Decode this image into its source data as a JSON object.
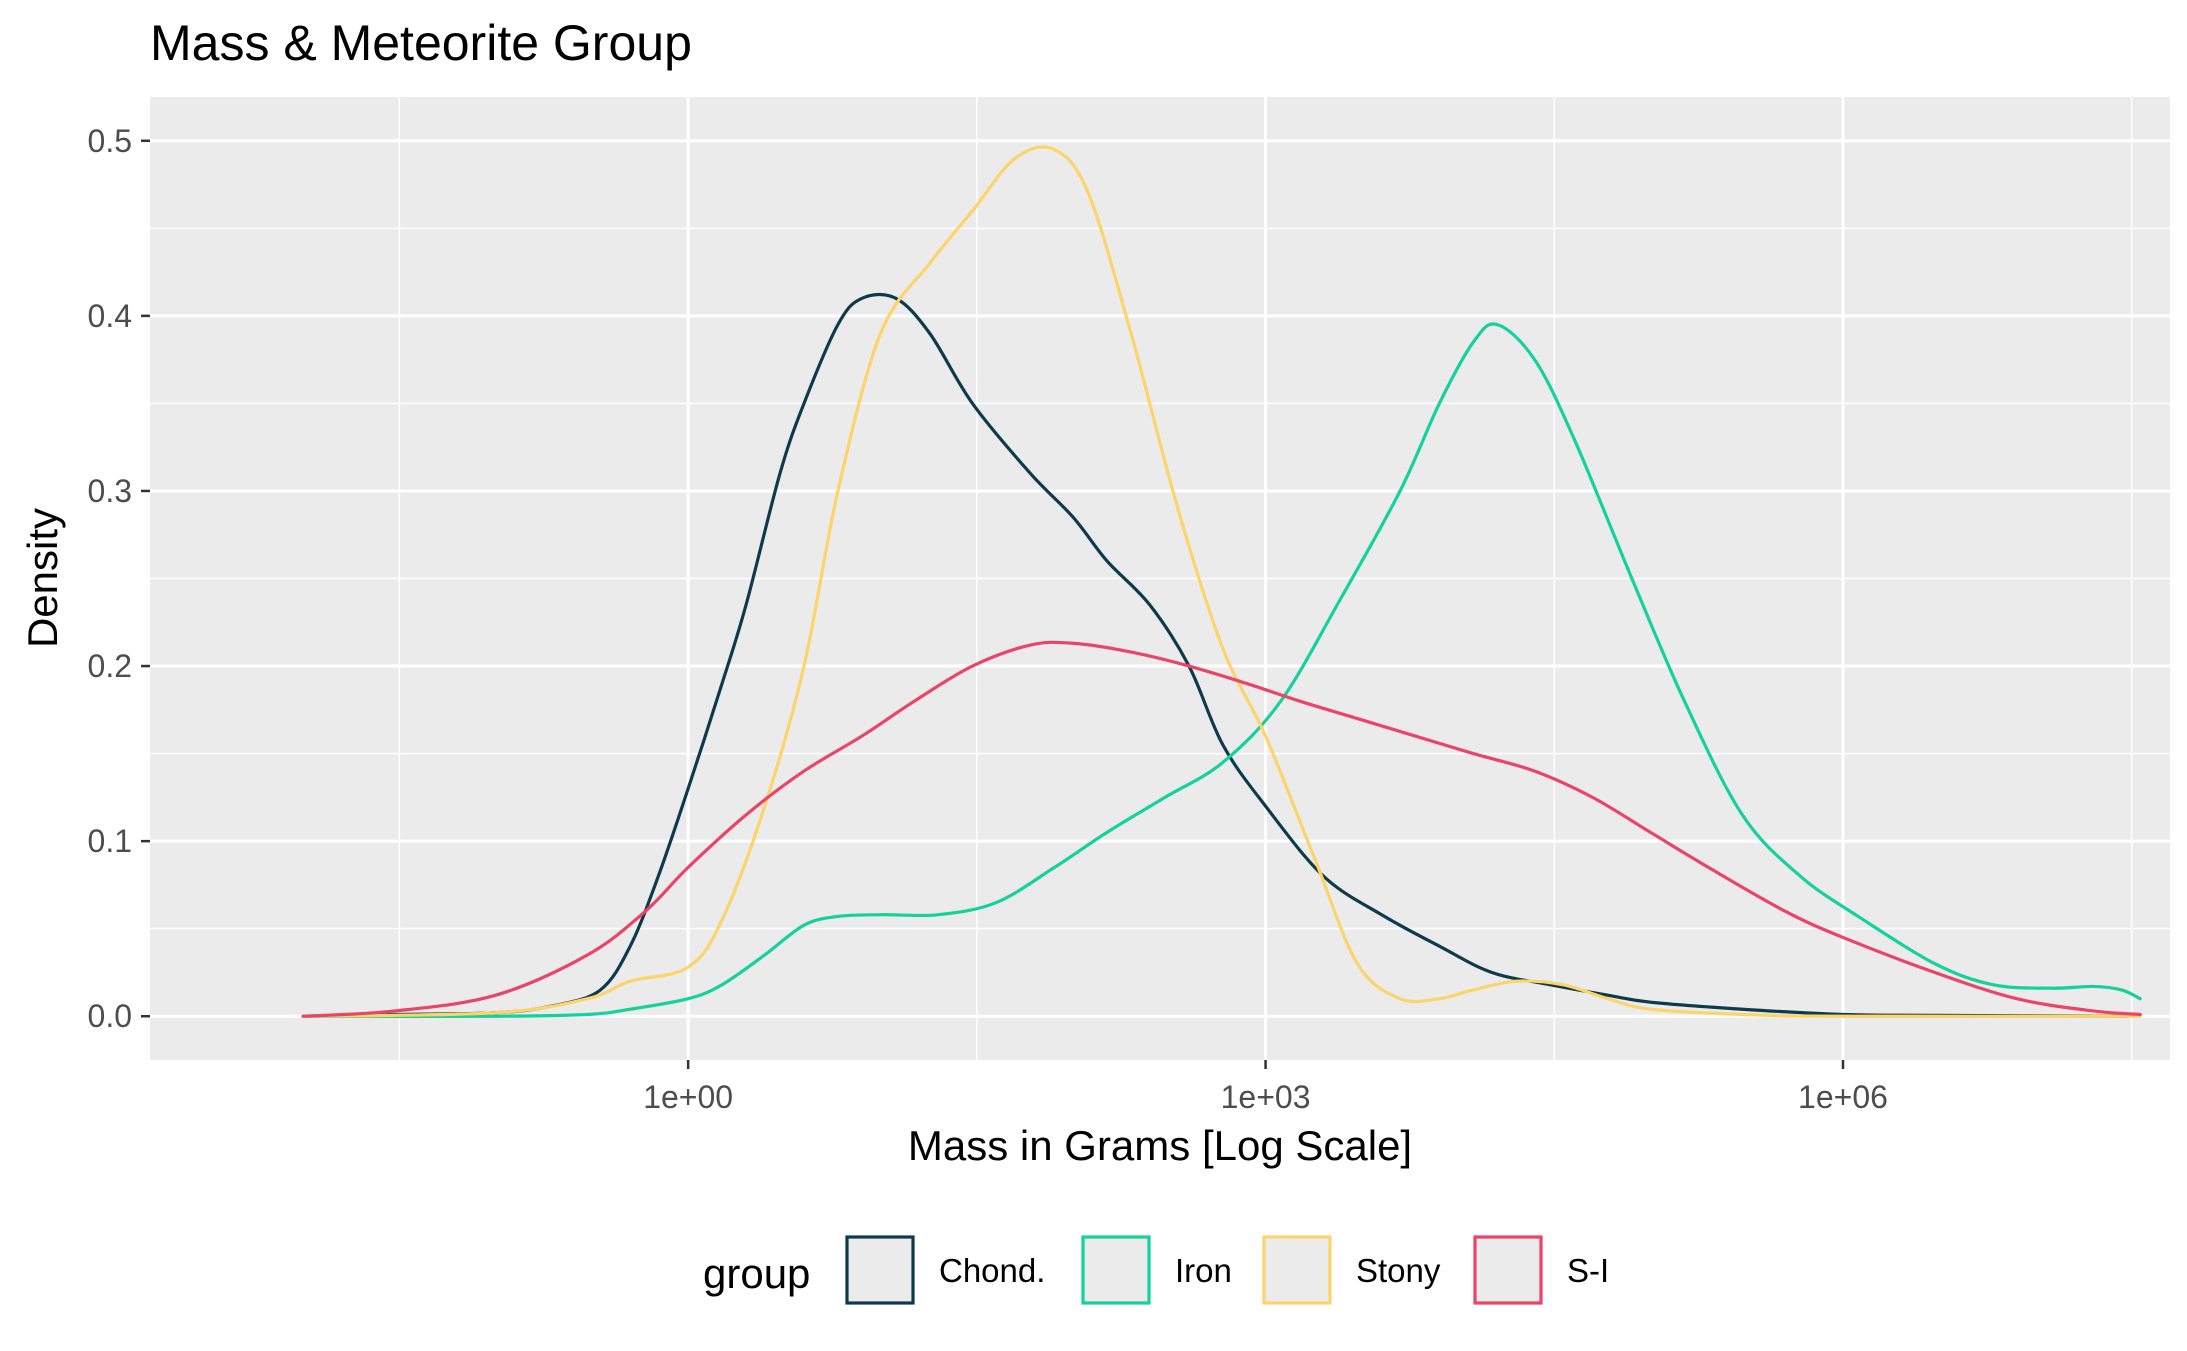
{
  "chart_data": {
    "type": "line",
    "title": "Mass & Meteorite Group",
    "xlabel": "Mass in Grams [Log Scale]",
    "ylabel": "Density",
    "x_scale": "log10",
    "xlim": [
      0.0016,
      50000000
    ],
    "ylim": [
      -0.025,
      0.525
    ],
    "x_ticks": [
      {
        "value": 1,
        "label": "1e+00"
      },
      {
        "value": 1000,
        "label": "1e+03"
      },
      {
        "value": 1000000,
        "label": "1e+06"
      }
    ],
    "y_ticks": [
      {
        "value": 0.0,
        "label": "0.0"
      },
      {
        "value": 0.1,
        "label": "0.1"
      },
      {
        "value": 0.2,
        "label": "0.2"
      },
      {
        "value": 0.3,
        "label": "0.3"
      },
      {
        "value": 0.4,
        "label": "0.4"
      },
      {
        "value": 0.5,
        "label": "0.5"
      }
    ],
    "grid": true,
    "legend": {
      "title": "group",
      "position": "bottom"
    },
    "series": [
      {
        "name": "Chond.",
        "color": "#0d3b4c",
        "points": [
          [
            0.01,
            0.0
          ],
          [
            0.03,
            0.001
          ],
          [
            0.1,
            0.002
          ],
          [
            0.2,
            0.006
          ],
          [
            0.35,
            0.015
          ],
          [
            0.5,
            0.04
          ],
          [
            0.7,
            0.08
          ],
          [
            1,
            0.13
          ],
          [
            1.5,
            0.19
          ],
          [
            2,
            0.235
          ],
          [
            3,
            0.31
          ],
          [
            4,
            0.35
          ],
          [
            6,
            0.395
          ],
          [
            8,
            0.41
          ],
          [
            12,
            0.41
          ],
          [
            18,
            0.39
          ],
          [
            30,
            0.35
          ],
          [
            60,
            0.31
          ],
          [
            100,
            0.285
          ],
          [
            150,
            0.26
          ],
          [
            250,
            0.235
          ],
          [
            400,
            0.2
          ],
          [
            600,
            0.155
          ],
          [
            1000,
            0.12
          ],
          [
            2000,
            0.08
          ],
          [
            4000,
            0.058
          ],
          [
            8000,
            0.04
          ],
          [
            15000,
            0.025
          ],
          [
            30000,
            0.018
          ],
          [
            60000,
            0.012
          ],
          [
            100000,
            0.008
          ],
          [
            300000,
            0.004
          ],
          [
            1000000,
            0.001
          ],
          [
            3000000,
            0.0005
          ],
          [
            30000000,
            0.0
          ]
        ]
      },
      {
        "name": "Iron",
        "color": "#15d19a",
        "points": [
          [
            0.01,
            0.0
          ],
          [
            0.1,
            0.0
          ],
          [
            0.3,
            0.001
          ],
          [
            0.5,
            0.004
          ],
          [
            1,
            0.01
          ],
          [
            1.5,
            0.018
          ],
          [
            2.5,
            0.035
          ],
          [
            4,
            0.052
          ],
          [
            6,
            0.057
          ],
          [
            10,
            0.058
          ],
          [
            20,
            0.058
          ],
          [
            40,
            0.065
          ],
          [
            80,
            0.085
          ],
          [
            150,
            0.105
          ],
          [
            300,
            0.125
          ],
          [
            600,
            0.145
          ],
          [
            1200,
            0.18
          ],
          [
            2500,
            0.24
          ],
          [
            5000,
            0.3
          ],
          [
            8000,
            0.35
          ],
          [
            12000,
            0.385
          ],
          [
            16000,
            0.395
          ],
          [
            25000,
            0.375
          ],
          [
            40000,
            0.33
          ],
          [
            80000,
            0.25
          ],
          [
            150000,
            0.18
          ],
          [
            300000,
            0.115
          ],
          [
            600000,
            0.08
          ],
          [
            1200000,
            0.057
          ],
          [
            3000000,
            0.03
          ],
          [
            6000000,
            0.018
          ],
          [
            12000000,
            0.016
          ],
          [
            20000000,
            0.017
          ],
          [
            28000000,
            0.015
          ],
          [
            35000000,
            0.01
          ]
        ]
      },
      {
        "name": "Stony",
        "color": "#fcd46a",
        "points": [
          [
            0.01,
            0.0
          ],
          [
            0.1,
            0.002
          ],
          [
            0.3,
            0.01
          ],
          [
            0.5,
            0.02
          ],
          [
            1,
            0.028
          ],
          [
            1.5,
            0.055
          ],
          [
            2.5,
            0.12
          ],
          [
            4,
            0.2
          ],
          [
            6,
            0.3
          ],
          [
            10,
            0.39
          ],
          [
            18,
            0.43
          ],
          [
            30,
            0.46
          ],
          [
            50,
            0.49
          ],
          [
            80,
            0.495
          ],
          [
            120,
            0.47
          ],
          [
            200,
            0.39
          ],
          [
            350,
            0.29
          ],
          [
            600,
            0.21
          ],
          [
            1000,
            0.16
          ],
          [
            1800,
            0.09
          ],
          [
            3000,
            0.03
          ],
          [
            5000,
            0.01
          ],
          [
            8000,
            0.01
          ],
          [
            12000,
            0.015
          ],
          [
            20000,
            0.02
          ],
          [
            35000,
            0.018
          ],
          [
            60000,
            0.01
          ],
          [
            100000,
            0.004
          ],
          [
            300000,
            0.001
          ],
          [
            1000000,
            0.0
          ],
          [
            35000000,
            0.0
          ]
        ]
      },
      {
        "name": "S-I",
        "color": "#ea4466",
        "points": [
          [
            0.01,
            0.0
          ],
          [
            0.03,
            0.003
          ],
          [
            0.1,
            0.012
          ],
          [
            0.3,
            0.035
          ],
          [
            0.6,
            0.06
          ],
          [
            1,
            0.085
          ],
          [
            2,
            0.115
          ],
          [
            4,
            0.14
          ],
          [
            8,
            0.16
          ],
          [
            15,
            0.18
          ],
          [
            30,
            0.2
          ],
          [
            60,
            0.212
          ],
          [
            100,
            0.213
          ],
          [
            200,
            0.208
          ],
          [
            400,
            0.2
          ],
          [
            800,
            0.19
          ],
          [
            1500,
            0.18
          ],
          [
            3000,
            0.17
          ],
          [
            6000,
            0.16
          ],
          [
            12000,
            0.15
          ],
          [
            25000,
            0.14
          ],
          [
            50000,
            0.125
          ],
          [
            100000,
            0.105
          ],
          [
            200000,
            0.085
          ],
          [
            500000,
            0.06
          ],
          [
            1000000,
            0.045
          ],
          [
            3000000,
            0.025
          ],
          [
            8000000,
            0.01
          ],
          [
            20000000,
            0.003
          ],
          [
            35000000,
            0.001
          ]
        ]
      }
    ]
  }
}
